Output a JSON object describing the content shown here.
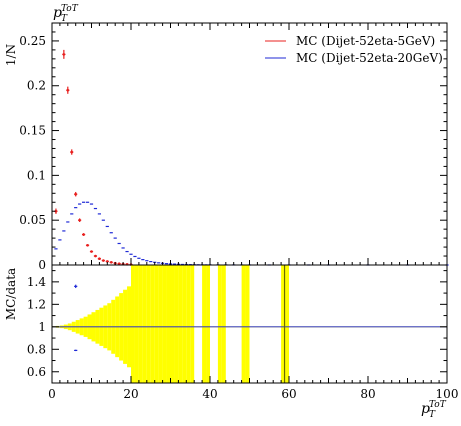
{
  "chart_data": [
    {
      "type": "scatter",
      "title": "p_T^ToT",
      "ylabel": "1/N",
      "xlim": [
        0,
        100
      ],
      "ylim": [
        0,
        0.27
      ],
      "yticks": [
        "0",
        "0.05",
        "0.1",
        "0.15",
        "0.2",
        "0.25"
      ],
      "legend_position": "top-right",
      "colors": {
        "red": "#e8201f",
        "blue": "#1f2ad6"
      },
      "series": [
        {
          "name": "MC (Dijet-52eta-5GeV)",
          "color": "#e8201f",
          "x": [
            1,
            3,
            4,
            5,
            6,
            7,
            8,
            9,
            10,
            11,
            12,
            13,
            14,
            15,
            16,
            17,
            18,
            19,
            20
          ],
          "y": [
            0.06,
            0.235,
            0.195,
            0.126,
            0.079,
            0.05,
            0.034,
            0.022,
            0.015,
            0.01,
            0.007,
            0.005,
            0.004,
            0.003,
            0.002,
            0.0015,
            0.001,
            0.0008,
            0.0005
          ],
          "yerr": [
            0.003,
            0.005,
            0.004,
            0.003,
            0.0025,
            0.002,
            0.0015,
            0.001,
            0.001,
            0.0008,
            0.0006,
            0.0005,
            0.0004,
            0.0003,
            0.0003,
            0.0002,
            0.0002,
            0.0002,
            0.0002
          ]
        },
        {
          "name": "MC (Dijet-52eta-20GeV)",
          "color": "#1f2ad6",
          "x": [
            1,
            2,
            3,
            4,
            5,
            6,
            7,
            8,
            9,
            10,
            11,
            12,
            13,
            14,
            15,
            16,
            17,
            18,
            19,
            20,
            21,
            22,
            23,
            24,
            25,
            26,
            27,
            28,
            29,
            30,
            31,
            32,
            33,
            34,
            35,
            36,
            37,
            38,
            39,
            40,
            42,
            44,
            46,
            48,
            50,
            55,
            60,
            65,
            70,
            80,
            90,
            100
          ],
          "y": [
            0.018,
            0.028,
            0.038,
            0.048,
            0.057,
            0.064,
            0.068,
            0.07,
            0.07,
            0.068,
            0.063,
            0.057,
            0.05,
            0.043,
            0.036,
            0.03,
            0.024,
            0.019,
            0.015,
            0.012,
            0.0095,
            0.0075,
            0.006,
            0.0048,
            0.0038,
            0.003,
            0.0024,
            0.0019,
            0.0015,
            0.0012,
            0.001,
            0.0008,
            0.0006,
            0.0005,
            0.0004,
            0.0003,
            0.00025,
            0.0002,
            0.00016,
            0.00013,
            0.0001,
            8e-05,
            6e-05,
            5e-05,
            4e-05,
            3e-05,
            2e-05,
            2e-05,
            1e-05,
            1e-05,
            1e-05,
            1e-05
          ]
        }
      ]
    },
    {
      "type": "scatter",
      "ylabel": "MC/data",
      "xlabel": "p_T^ToT",
      "xlim": [
        0,
        100
      ],
      "ylim": [
        0.5,
        1.55
      ],
      "xticks": [
        "0",
        "20",
        "40",
        "60",
        "80",
        "100"
      ],
      "yticks": [
        "0.6",
        "0.8",
        "1",
        "1.2",
        "1.4"
      ],
      "reference_line": 1,
      "band_color": "#ffff00",
      "band": {
        "x": [
          0,
          1,
          2,
          3,
          4,
          5,
          6,
          7,
          8,
          9,
          10,
          11,
          12,
          13,
          14,
          15,
          16,
          17,
          18,
          19,
          20,
          21,
          22,
          23,
          24,
          25,
          26,
          27,
          28,
          29,
          30,
          31,
          32,
          33,
          34,
          35,
          38,
          39,
          42,
          43,
          48,
          49,
          58,
          59
        ],
        "halfwidth": [
          0.004,
          0.008,
          0.012,
          0.02,
          0.03,
          0.045,
          0.06,
          0.075,
          0.09,
          0.11,
          0.13,
          0.15,
          0.17,
          0.19,
          0.21,
          0.24,
          0.27,
          0.3,
          0.33,
          0.36,
          0.6,
          0.6,
          0.6,
          0.6,
          0.6,
          0.6,
          0.6,
          0.6,
          0.6,
          0.6,
          0.6,
          0.6,
          0.6,
          0.6,
          0.6,
          0.6,
          0.6,
          0.6,
          0.6,
          0.6,
          0.6,
          0.6,
          0.6,
          0.6
        ]
      },
      "series": [
        {
          "name": "MC (Dijet-52eta-5GeV)",
          "color": "#e8201f",
          "x": [],
          "y": []
        },
        {
          "name": "MC (Dijet-52eta-20GeV)",
          "color": "#1f2ad6",
          "x": [
            6,
            6
          ],
          "y": [
            1.36,
            0.79
          ],
          "yerr": [
            0.015,
            0.006
          ]
        }
      ],
      "outliers": [
        {
          "x": 59,
          "y": 1.0
        }
      ]
    }
  ]
}
